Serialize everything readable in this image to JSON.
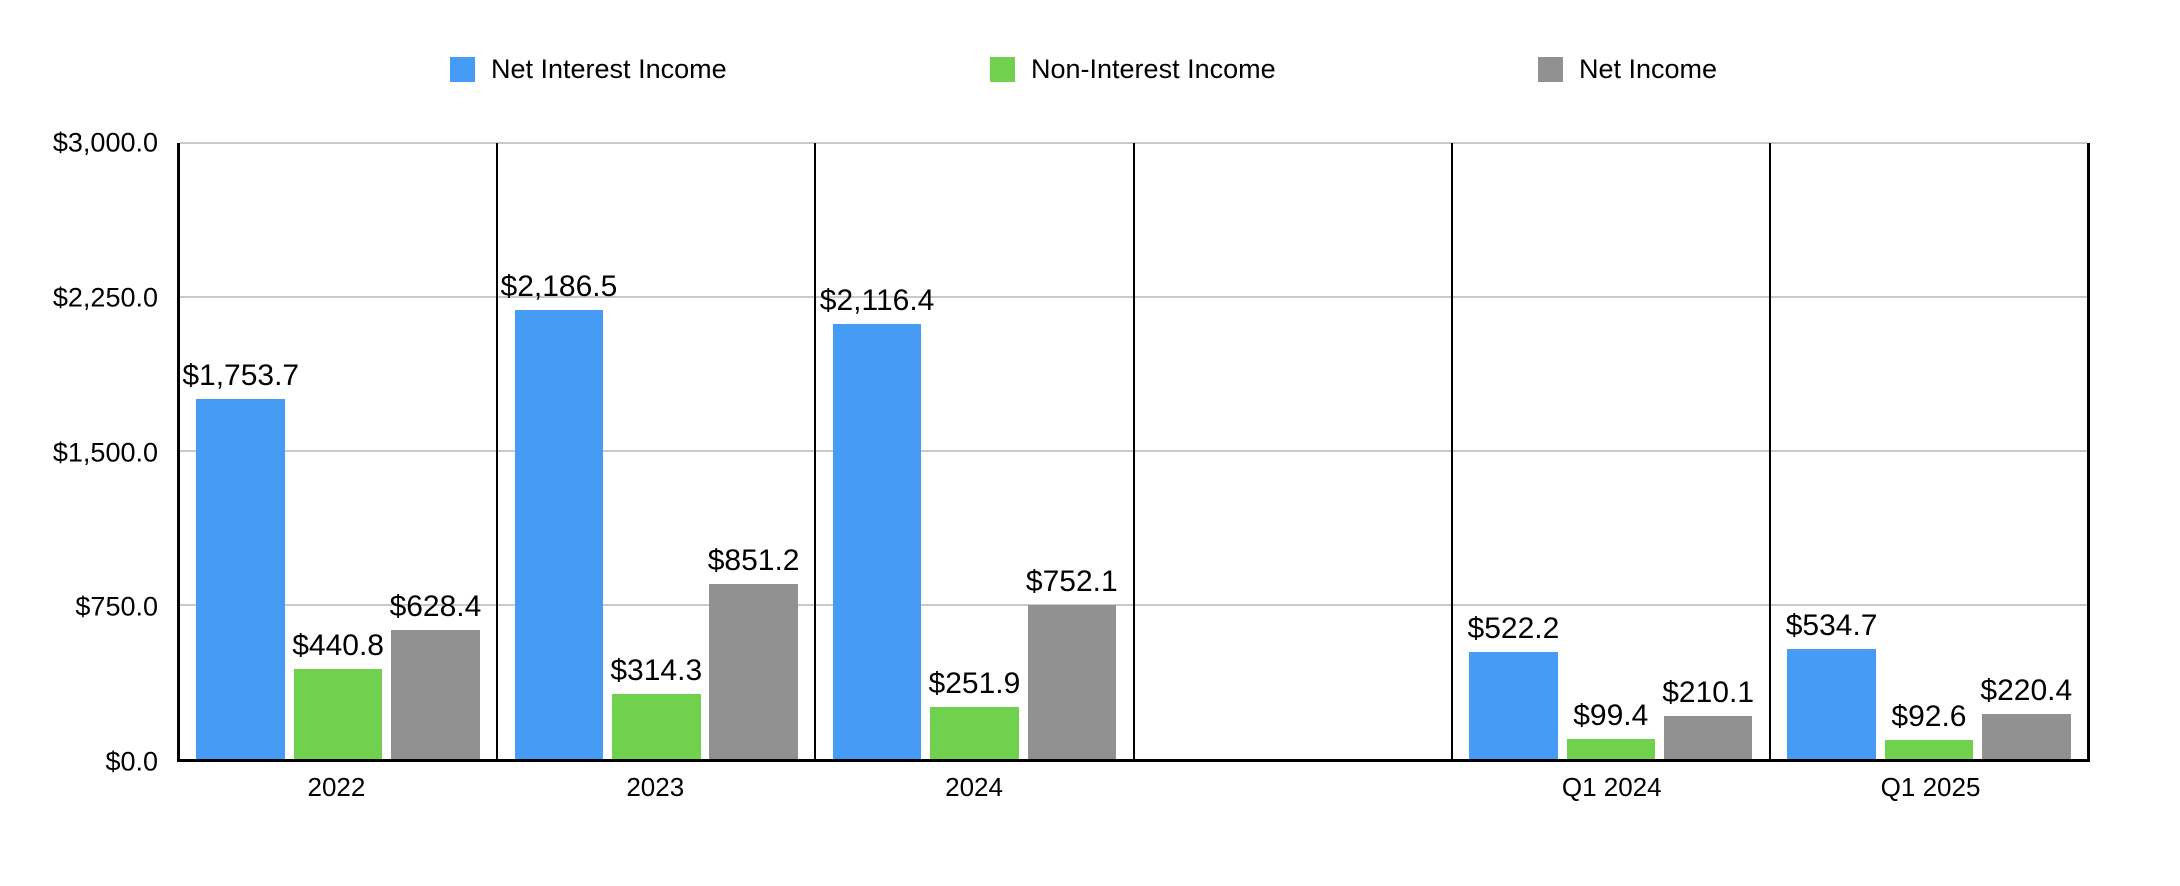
{
  "chart_data": {
    "type": "bar",
    "title": "",
    "categories": [
      "2022",
      "2023",
      "2024",
      "",
      "Q1 2024",
      "Q1 2025"
    ],
    "series": [
      {
        "name": "Net Interest Income",
        "color": "#469CF5",
        "values": [
          1753.7,
          2186.5,
          2116.4,
          null,
          522.2,
          534.7
        ],
        "labels": [
          "$1,753.7",
          "$2,186.5",
          "$2,116.4",
          "",
          "$522.2",
          "$534.7"
        ]
      },
      {
        "name": "Non-Interest Income",
        "color": "#6FD14E",
        "values": [
          440.8,
          314.3,
          251.9,
          null,
          99.4,
          92.6
        ],
        "labels": [
          "$440.8",
          "$314.3",
          "$251.9",
          "",
          "$99.4",
          "$92.6"
        ]
      },
      {
        "name": "Net Income",
        "color": "#919191",
        "values": [
          628.4,
          851.2,
          752.1,
          null,
          210.1,
          220.4
        ],
        "labels": [
          "$628.4",
          "$851.2",
          "$752.1",
          "",
          "$210.1",
          "$220.4"
        ]
      }
    ],
    "xlabel": "",
    "ylabel": "",
    "ylim": [
      0,
      3000
    ],
    "yticks": [
      {
        "label": "$3,000.0",
        "value": 3000
      },
      {
        "label": "$2,250.0",
        "value": 2250
      },
      {
        "label": "$1,500.0",
        "value": 1500
      },
      {
        "label": "$750.0",
        "value": 750
      },
      {
        "label": "$0.0",
        "value": 0
      }
    ],
    "grid": true,
    "legend_position": "top",
    "colors": {
      "axis": "#000000",
      "panel_divider": "#000000",
      "gridline": "#C9C9C9",
      "text": "#000000",
      "background": "#FFFFFF"
    },
    "legend_x_positions": [
      450,
      990,
      1538
    ]
  }
}
